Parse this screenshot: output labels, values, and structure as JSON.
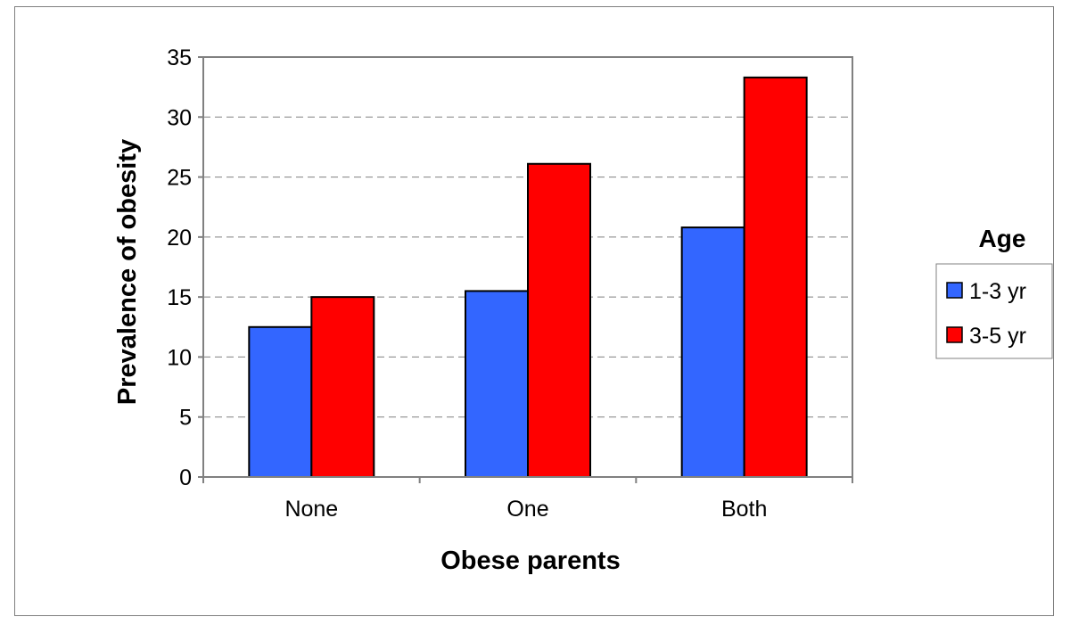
{
  "chart_data": {
    "type": "bar",
    "title": "",
    "xlabel": "Obese parents",
    "ylabel": "Prevalence of obesity",
    "categories": [
      "None",
      "One",
      "Both"
    ],
    "series": [
      {
        "name": "1-3 yr",
        "values": [
          12.5,
          15.5,
          20.8
        ],
        "color": "#3366ff"
      },
      {
        "name": "3-5 yr",
        "values": [
          15.0,
          26.1,
          33.3
        ],
        "color": "#ff0000"
      }
    ],
    "ylim": [
      0,
      35
    ],
    "yticks": [
      0,
      5,
      10,
      15,
      20,
      25,
      30,
      35
    ],
    "grid": true,
    "legend": {
      "title": "Age",
      "position": "right"
    }
  }
}
